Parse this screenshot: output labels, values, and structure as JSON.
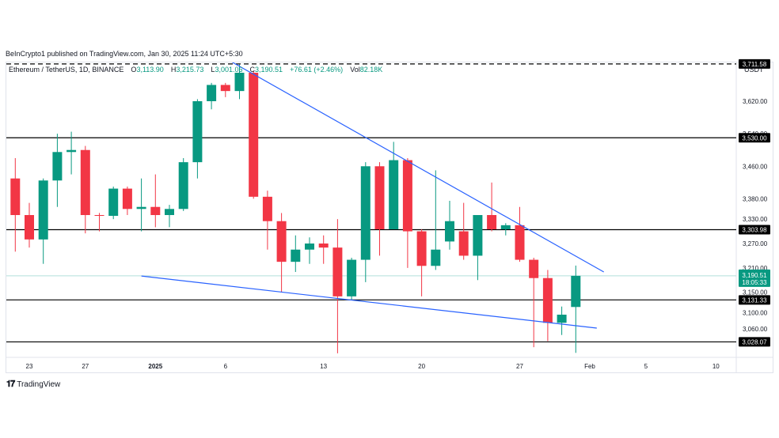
{
  "header": {
    "publisher_line": "BeInCrypto1 published on TradingView.com, Jan 30, 2025 11:24 UTC+5:30"
  },
  "legend": {
    "symbol": "Ethereum / TetherUS, 1D, BINANCE",
    "open_label": "O",
    "open": "3,113.90",
    "high_label": "H",
    "high": "3,215.73",
    "low_label": "L",
    "low": "3,001.06",
    "close_label": "C",
    "close": "3,190.51",
    "change": "+76.61 (+2.46%)",
    "vol_label": "Vol",
    "vol": "82.18K"
  },
  "currency": "USDT",
  "brand": {
    "name": "TradingView",
    "logo_icon": "tradingview-logo-icon"
  },
  "chart_data": {
    "type": "candlestick",
    "title": "Ethereum / TetherUS, 1D, BINANCE",
    "colors": {
      "up": "#089981",
      "down": "#f23645",
      "trendline": "#2962ff",
      "level": "#000000",
      "current_price_line": "#b2dfdb"
    },
    "y_axis": {
      "range": [
        2990,
        3830
      ],
      "side": "right",
      "tick_labels": [
        "3,620.00",
        "3,540.00",
        "3,460.00",
        "3,380.00",
        "3,330.00",
        "3,270.00",
        "3,210.00",
        "3,150.00",
        "3,100.00",
        "3,060.00"
      ]
    },
    "x_axis": {
      "tick_labels": [
        {
          "label": "23",
          "day": 0,
          "bold": false
        },
        {
          "label": "27",
          "day": 4,
          "bold": false
        },
        {
          "label": "2025",
          "day": 9,
          "bold": true
        },
        {
          "label": "6",
          "day": 14,
          "bold": false
        },
        {
          "label": "13",
          "day": 21,
          "bold": false
        },
        {
          "label": "20",
          "day": 28,
          "bold": false
        },
        {
          "label": "27",
          "day": 35,
          "bold": false
        },
        {
          "label": "Feb",
          "day": 40,
          "bold": false
        },
        {
          "label": "5",
          "day": 44,
          "bold": false
        },
        {
          "label": "10",
          "day": 49,
          "bold": false
        }
      ]
    },
    "candles": [
      {
        "day": -1,
        "o": 3430,
        "h": 3480,
        "l": 3250,
        "c": 3340
      },
      {
        "day": 0,
        "o": 3340,
        "h": 3370,
        "l": 3260,
        "c": 3280
      },
      {
        "day": 1,
        "o": 3280,
        "h": 3430,
        "l": 3220,
        "c": 3425
      },
      {
        "day": 2,
        "o": 3425,
        "h": 3540,
        "l": 3360,
        "c": 3495
      },
      {
        "day": 3,
        "o": 3495,
        "h": 3545,
        "l": 3440,
        "c": 3500
      },
      {
        "day": 4,
        "o": 3500,
        "h": 3510,
        "l": 3295,
        "c": 3340
      },
      {
        "day": 5,
        "o": 3340,
        "h": 3345,
        "l": 3300,
        "c": 3338
      },
      {
        "day": 6,
        "o": 3338,
        "h": 3410,
        "l": 3330,
        "c": 3405
      },
      {
        "day": 7,
        "o": 3405,
        "h": 3410,
        "l": 3340,
        "c": 3355
      },
      {
        "day": 8,
        "o": 3355,
        "h": 3430,
        "l": 3300,
        "c": 3360
      },
      {
        "day": 9,
        "o": 3360,
        "h": 3440,
        "l": 3310,
        "c": 3340
      },
      {
        "day": 10,
        "o": 3340,
        "h": 3365,
        "l": 3310,
        "c": 3355
      },
      {
        "day": 11,
        "o": 3355,
        "h": 3480,
        "l": 3350,
        "c": 3470
      },
      {
        "day": 12,
        "o": 3470,
        "h": 3625,
        "l": 3430,
        "c": 3620
      },
      {
        "day": 13,
        "o": 3620,
        "h": 3665,
        "l": 3600,
        "c": 3660
      },
      {
        "day": 14,
        "o": 3660,
        "h": 3665,
        "l": 3630,
        "c": 3645
      },
      {
        "day": 15,
        "o": 3645,
        "h": 3710,
        "l": 3625,
        "c": 3690
      },
      {
        "day": 16,
        "o": 3690,
        "h": 3695,
        "l": 3380,
        "c": 3385
      },
      {
        "day": 17,
        "o": 3385,
        "h": 3400,
        "l": 3255,
        "c": 3325
      },
      {
        "day": 18,
        "o": 3325,
        "h": 3345,
        "l": 3150,
        "c": 3225
      },
      {
        "day": 19,
        "o": 3225,
        "h": 3290,
        "l": 3200,
        "c": 3255
      },
      {
        "day": 20,
        "o": 3255,
        "h": 3285,
        "l": 3220,
        "c": 3270
      },
      {
        "day": 21,
        "o": 3270,
        "h": 3290,
        "l": 3220,
        "c": 3260
      },
      {
        "day": 22,
        "o": 3260,
        "h": 3330,
        "l": 3000,
        "c": 3140
      },
      {
        "day": 23,
        "o": 3140,
        "h": 3235,
        "l": 3130,
        "c": 3230
      },
      {
        "day": 24,
        "o": 3230,
        "h": 3470,
        "l": 3175,
        "c": 3460
      },
      {
        "day": 25,
        "o": 3460,
        "h": 3470,
        "l": 3240,
        "c": 3305
      },
      {
        "day": 26,
        "o": 3305,
        "h": 3520,
        "l": 3305,
        "c": 3475
      },
      {
        "day": 27,
        "o": 3475,
        "h": 3480,
        "l": 3210,
        "c": 3300
      },
      {
        "day": 28,
        "o": 3300,
        "h": 3305,
        "l": 3140,
        "c": 3215
      },
      {
        "day": 29,
        "o": 3215,
        "h": 3450,
        "l": 3205,
        "c": 3255
      },
      {
        "day": 30,
        "o": 3275,
        "h": 3375,
        "l": 3255,
        "c": 3325
      },
      {
        "day": 31,
        "o": 3300,
        "h": 3370,
        "l": 3230,
        "c": 3240
      },
      {
        "day": 32,
        "o": 3240,
        "h": 3340,
        "l": 3180,
        "c": 3340
      },
      {
        "day": 33,
        "o": 3340,
        "h": 3420,
        "l": 3300,
        "c": 3305
      },
      {
        "day": 34,
        "o": 3305,
        "h": 3320,
        "l": 3290,
        "c": 3315
      },
      {
        "day": 35,
        "o": 3315,
        "h": 3360,
        "l": 3225,
        "c": 3230
      },
      {
        "day": 36,
        "o": 3230,
        "h": 3235,
        "l": 3015,
        "c": 3185
      },
      {
        "day": 37,
        "o": 3185,
        "h": 3205,
        "l": 3030,
        "c": 3075
      },
      {
        "day": 38,
        "o": 3075,
        "h": 3115,
        "l": 3045,
        "c": 3095
      },
      {
        "day": 39,
        "o": 3113.9,
        "h": 3215.73,
        "l": 3001.06,
        "c": 3190.51
      }
    ],
    "horizontal_levels": [
      {
        "value": 3711.58,
        "label": "3,711.58",
        "style": "dashed"
      },
      {
        "value": 3530.0,
        "label": "3,530.00",
        "style": "solid"
      },
      {
        "value": 3303.98,
        "label": "3,303.98",
        "style": "solid"
      },
      {
        "value": 3131.33,
        "label": "3,131.33",
        "style": "solid"
      },
      {
        "value": 3028.07,
        "label": "3,028.07",
        "style": "solid"
      }
    ],
    "current_price": {
      "value": 3190.51,
      "label": "3,190.51",
      "countdown": "18:05:33"
    },
    "trendlines": [
      {
        "from": {
          "day": 13.5,
          "price": 3735
        },
        "to": {
          "day": 41,
          "price": 3200
        }
      },
      {
        "from": {
          "day": 8,
          "price": 3190
        },
        "to": {
          "day": 40.5,
          "price": 3062
        }
      }
    ]
  }
}
